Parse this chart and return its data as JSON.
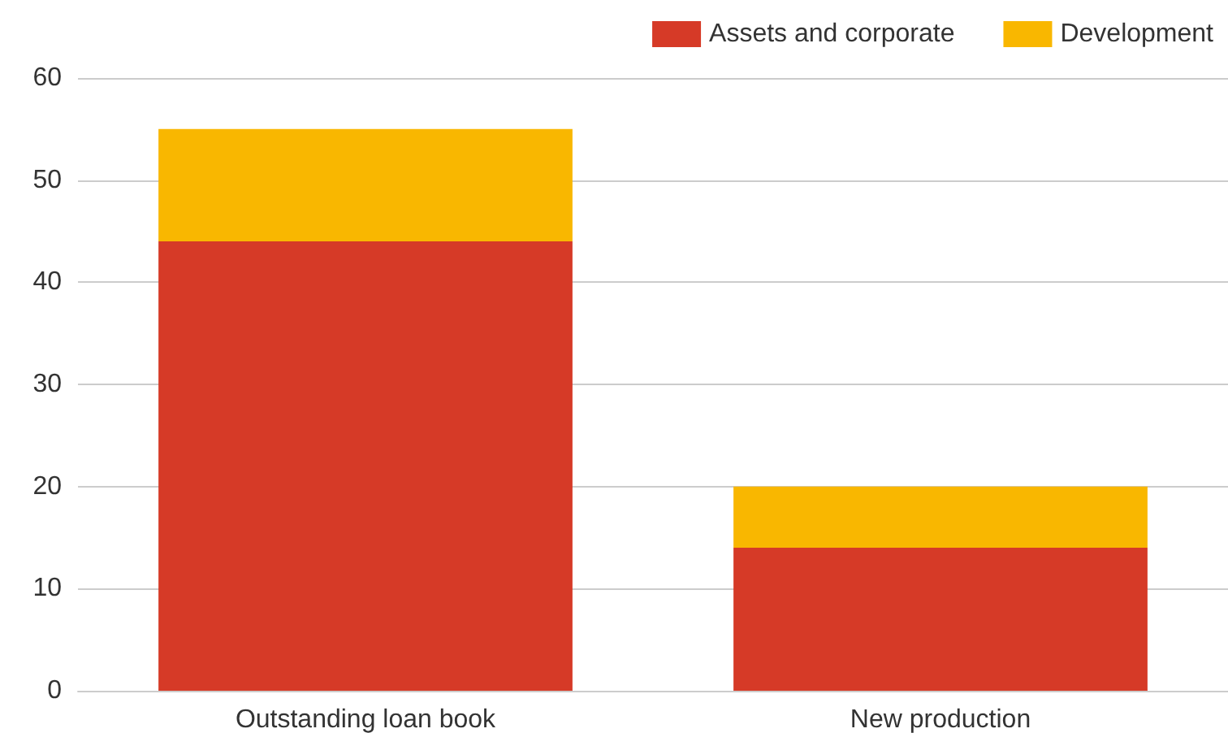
{
  "chart_data": {
    "type": "bar",
    "stacked": true,
    "categories": [
      "Outstanding loan book",
      "New production"
    ],
    "series": [
      {
        "name": "Assets and corporate",
        "color": "#d63a27",
        "values": [
          44,
          14
        ]
      },
      {
        "name": "Development",
        "color": "#f9b700",
        "values": [
          11,
          6
        ]
      }
    ],
    "ylim": [
      0,
      60
    ],
    "yticks": [
      0,
      10,
      20,
      30,
      40,
      50,
      60
    ],
    "grid": "y",
    "legend": "top right"
  }
}
